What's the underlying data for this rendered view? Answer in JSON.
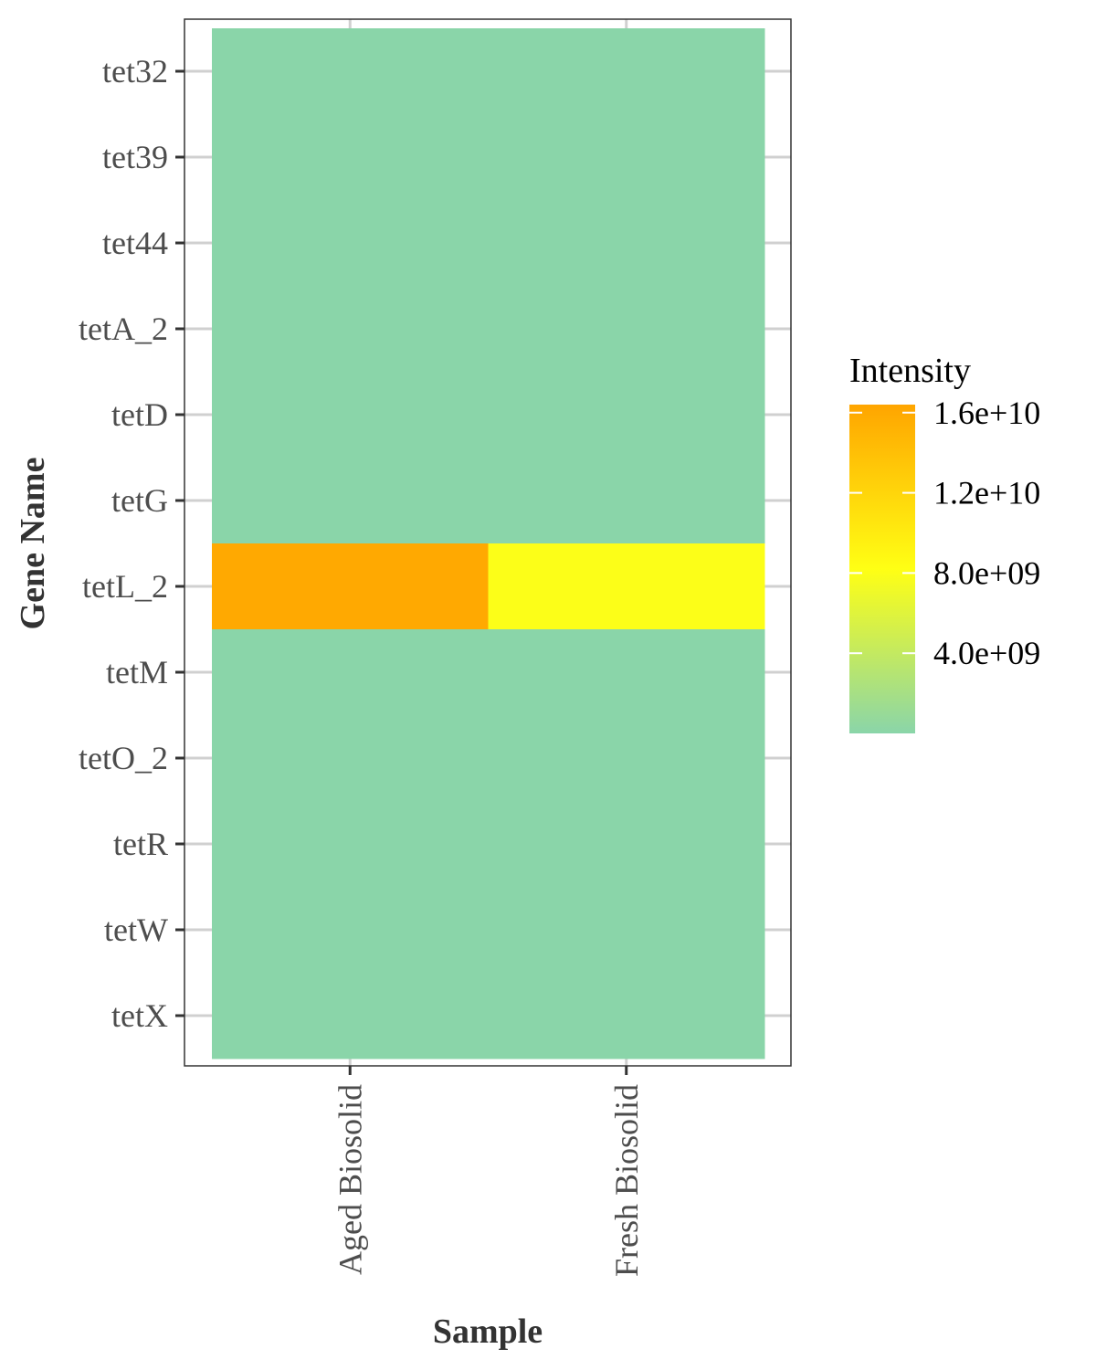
{
  "chart_data": {
    "type": "heatmap",
    "title": "",
    "xlabel": "Sample",
    "ylabel": "Gene Name",
    "x_categories": [
      "Aged Biosolid",
      "Fresh Biosolid"
    ],
    "y_categories": [
      "tet32",
      "tet39",
      "tet44",
      "tetA_2",
      "tetD",
      "tetG",
      "tetL_2",
      "tetM",
      "tetO_2",
      "tetR",
      "tetW",
      "tetX"
    ],
    "values": [
      [
        0,
        0
      ],
      [
        0,
        0
      ],
      [
        0,
        0
      ],
      [
        0,
        0
      ],
      [
        0,
        0
      ],
      [
        0,
        0
      ],
      [
        16000000000,
        8000000000
      ],
      [
        0,
        0
      ],
      [
        0,
        0
      ],
      [
        0,
        0
      ],
      [
        0,
        0
      ],
      [
        0,
        0
      ]
    ],
    "color_scale": {
      "low": "#8ad5a9",
      "mid": "#ffff14",
      "high": "#ffa500",
      "range": [
        0,
        16400000000
      ]
    },
    "legend": {
      "title": "Intensity",
      "labels": [
        "1.6e+10",
        "1.2e+10",
        "8.0e+09",
        "4.0e+09"
      ],
      "breaks": [
        16000000000,
        12000000000,
        8000000000,
        4000000000
      ],
      "position": "right"
    },
    "grid": true
  }
}
